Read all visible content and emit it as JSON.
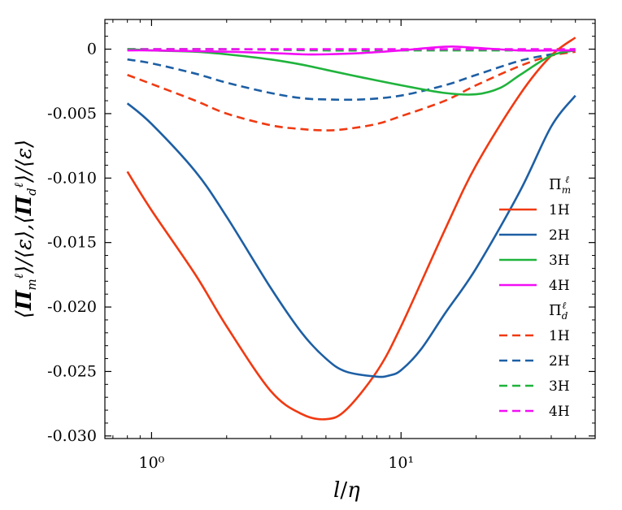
{
  "chart_data": {
    "type": "line",
    "xscale": "log",
    "xlabel": "l/η",
    "ylabel": "⟨Π_m^ℓ⟩/⟨ε⟩, ⟨Π_d^ℓ⟩/⟨ε⟩",
    "xlim": [
      0.65,
      60
    ],
    "ylim": [
      -0.0302,
      0.0023
    ],
    "x_ticks": [
      {
        "value": 1,
        "label": "10⁰"
      },
      {
        "value": 10,
        "label": "10¹"
      }
    ],
    "y_ticks": [
      {
        "value": 0,
        "label": "0"
      },
      {
        "value": -0.005,
        "label": "-0.005"
      },
      {
        "value": -0.01,
        "label": "-0.010"
      },
      {
        "value": -0.015,
        "label": "-0.015"
      },
      {
        "value": -0.02,
        "label": "-0.020"
      },
      {
        "value": -0.025,
        "label": "-0.025"
      },
      {
        "value": -0.03,
        "label": "-0.030"
      }
    ],
    "legend": {
      "position": "right",
      "groups": [
        {
          "title": "Πᵐ",
          "title_base": "Π",
          "title_sub": "m",
          "title_sup": "ℓ",
          "style": "solid",
          "entries": [
            "1H",
            "2H",
            "3H",
            "4H"
          ]
        },
        {
          "title": "Πᵈ",
          "title_base": "Π",
          "title_sub": "d",
          "title_sup": "ℓ",
          "style": "dashed",
          "entries": [
            "1H",
            "2H",
            "3H",
            "4H"
          ]
        }
      ]
    },
    "colors": {
      "1H": "#f03a12",
      "2H": "#1d5fa4",
      "3H": "#1fb33c",
      "4H": "#f20ef5"
    },
    "series": [
      {
        "name": "Π_m 1H",
        "label": "1H",
        "group": "m",
        "style": "solid",
        "color": "#f03a12",
        "x": [
          0.8,
          1.0,
          1.5,
          2.0,
          3.0,
          4.0,
          5.0,
          6.0,
          8.0,
          10.0,
          15.0,
          20.0,
          30.0,
          40.0,
          50.0
        ],
        "y": [
          -0.0095,
          -0.0125,
          -0.0175,
          -0.0215,
          -0.0265,
          -0.0283,
          -0.0287,
          -0.028,
          -0.025,
          -0.0215,
          -0.014,
          -0.009,
          -0.0035,
          -0.0005,
          0.0009
        ]
      },
      {
        "name": "Π_m 2H",
        "label": "2H",
        "group": "m",
        "style": "solid",
        "color": "#1d5fa4",
        "x": [
          0.8,
          1.0,
          1.5,
          2.0,
          3.0,
          4.0,
          5.0,
          6.0,
          8.0,
          9.0,
          10.0,
          12.0,
          15.0,
          20.0,
          30.0,
          40.0,
          50.0
        ],
        "y": [
          -0.0042,
          -0.0058,
          -0.0095,
          -0.013,
          -0.0185,
          -0.022,
          -0.024,
          -0.025,
          -0.0254,
          -0.0253,
          -0.0249,
          -0.0233,
          -0.0205,
          -0.017,
          -0.011,
          -0.006,
          -0.0036
        ]
      },
      {
        "name": "Π_m 3H",
        "label": "3H",
        "group": "m",
        "style": "solid",
        "color": "#1fb33c",
        "x": [
          0.8,
          1.0,
          1.5,
          2.0,
          3.0,
          4.0,
          5.0,
          7.0,
          10.0,
          15.0,
          20.0,
          25.0,
          30.0,
          40.0,
          50.0
        ],
        "y": [
          0.0,
          -0.0001,
          -0.0002,
          -0.0004,
          -0.0008,
          -0.0012,
          -0.0016,
          -0.0022,
          -0.0028,
          -0.0034,
          -0.0035,
          -0.003,
          -0.002,
          -0.0005,
          -0.0001
        ]
      },
      {
        "name": "Π_m 4H",
        "label": "4H",
        "group": "m",
        "style": "solid",
        "color": "#f20ef5",
        "x": [
          0.8,
          1.0,
          2.0,
          3.0,
          4.0,
          5.0,
          7.0,
          10.0,
          13.0,
          16.0,
          20.0,
          30.0,
          40.0,
          50.0
        ],
        "y": [
          -0.0001,
          -0.0001,
          -0.0002,
          -0.0003,
          -0.0004,
          -0.0004,
          -0.0003,
          -0.0001,
          0.0001,
          0.0002,
          0.0001,
          -0.0001,
          -0.0001,
          -0.0001
        ]
      },
      {
        "name": "Π_d 1H",
        "label": "1H",
        "group": "d",
        "style": "dashed",
        "color": "#f03a12",
        "x": [
          0.8,
          1.0,
          1.5,
          2.0,
          3.0,
          4.0,
          5.0,
          6.0,
          8.0,
          10.0,
          15.0,
          20.0,
          30.0,
          40.0,
          50.0
        ],
        "y": [
          -0.002,
          -0.0027,
          -0.004,
          -0.005,
          -0.0059,
          -0.0062,
          -0.0063,
          -0.0062,
          -0.0058,
          -0.0052,
          -0.004,
          -0.0028,
          -0.0013,
          -0.0005,
          -0.0002
        ]
      },
      {
        "name": "Π_d 2H",
        "label": "2H",
        "group": "d",
        "style": "dashed",
        "color": "#1d5fa4",
        "x": [
          0.8,
          1.0,
          1.5,
          2.0,
          3.0,
          4.0,
          5.0,
          7.0,
          10.0,
          15.0,
          20.0,
          30.0,
          40.0,
          50.0
        ],
        "y": [
          -0.0008,
          -0.0011,
          -0.0019,
          -0.0026,
          -0.0034,
          -0.0038,
          -0.0039,
          -0.0039,
          -0.0036,
          -0.0028,
          -0.002,
          -0.0009,
          -0.0004,
          -0.0001
        ]
      },
      {
        "name": "Π_d 3H",
        "label": "3H",
        "group": "d",
        "style": "dashed",
        "color": "#1fb33c",
        "x": [
          0.8,
          1.0,
          2.0,
          5.0,
          10.0,
          15.0,
          20.0,
          30.0,
          40.0,
          50.0
        ],
        "y": [
          0.0,
          0.0,
          0.0,
          -0.0001,
          -0.0001,
          -0.0001,
          -0.0001,
          -0.0001,
          -0.0001,
          0.0
        ]
      },
      {
        "name": "Π_d 4H",
        "label": "4H",
        "group": "d",
        "style": "dashed",
        "color": "#f20ef5",
        "x": [
          0.8,
          1.0,
          2.0,
          5.0,
          10.0,
          20.0,
          30.0,
          40.0,
          50.0
        ],
        "y": [
          0.0,
          0.0,
          0.0,
          0.0,
          0.0,
          0.0,
          0.0,
          0.0,
          0.0
        ]
      }
    ]
  }
}
